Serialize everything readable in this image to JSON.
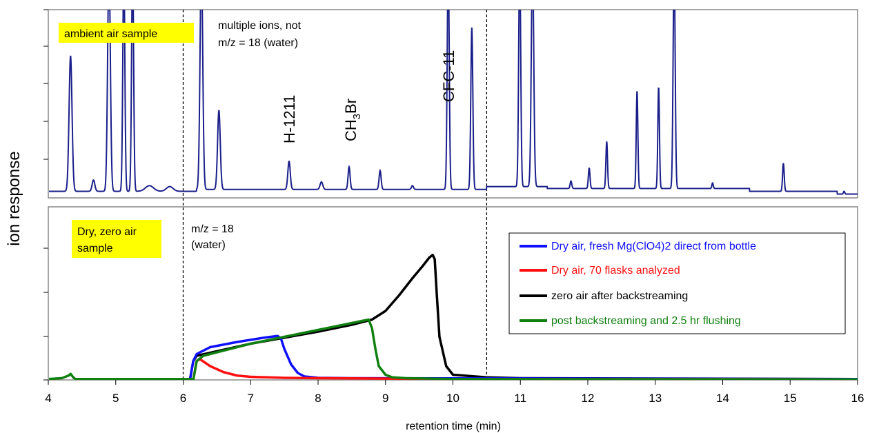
{
  "chart_data": [
    {
      "panel": "top",
      "type": "line",
      "label_box": "ambient air sample",
      "annotation_lines": [
        "multiple ions, not",
        "m/z = 18 (water)"
      ],
      "peak_labels": [
        {
          "text": "H-1211",
          "x": 7.55
        },
        {
          "parts": [
            [
              "CH",
              "normal"
            ],
            [
              "3",
              "sub"
            ],
            [
              "Br",
              "normal"
            ]
          ],
          "x": 8.45
        },
        {
          "text": "CFC-11",
          "x": 9.93
        }
      ],
      "color": "#1a1f8a",
      "baseline": 0.035,
      "peaks": [
        {
          "x": 4.33,
          "h": 0.72,
          "w": 0.022
        },
        {
          "x": 4.67,
          "h": 0.06,
          "w": 0.02
        },
        {
          "x": 4.9,
          "h": 1.2,
          "w": 0.02
        },
        {
          "x": 5.12,
          "h": 1.2,
          "w": 0.015
        },
        {
          "x": 5.25,
          "h": 1.2,
          "w": 0.015
        },
        {
          "x": 5.5,
          "h": 0.03,
          "w": 0.06
        },
        {
          "x": 5.8,
          "h": 0.025,
          "w": 0.05
        },
        {
          "x": 6.27,
          "h": 1.2,
          "w": 0.02
        },
        {
          "x": 6.53,
          "h": 0.42,
          "w": 0.02
        },
        {
          "x": 7.57,
          "h": 0.15,
          "w": 0.018
        },
        {
          "x": 8.05,
          "h": 0.04,
          "w": 0.02
        },
        {
          "x": 8.46,
          "h": 0.12,
          "w": 0.015
        },
        {
          "x": 8.92,
          "h": 0.1,
          "w": 0.015
        },
        {
          "x": 9.4,
          "h": 0.02,
          "w": 0.015
        },
        {
          "x": 9.93,
          "h": 1.2,
          "w": 0.015
        },
        {
          "x": 10.28,
          "h": 0.86,
          "w": 0.015
        },
        {
          "x": 10.99,
          "h": 1.2,
          "w": 0.015
        },
        {
          "x": 11.18,
          "h": 1.2,
          "w": 0.018
        },
        {
          "x": 11.75,
          "h": 0.04,
          "w": 0.012
        },
        {
          "x": 12.02,
          "h": 0.11,
          "w": 0.012
        },
        {
          "x": 12.28,
          "h": 0.25,
          "w": 0.012
        },
        {
          "x": 12.73,
          "h": 0.52,
          "w": 0.012
        },
        {
          "x": 13.05,
          "h": 0.54,
          "w": 0.012
        },
        {
          "x": 13.28,
          "h": 1.2,
          "w": 0.015
        },
        {
          "x": 13.85,
          "h": 0.03,
          "w": 0.01
        },
        {
          "x": 14.9,
          "h": 0.15,
          "w": 0.012
        },
        {
          "x": 15.8,
          "h": 0.015,
          "w": 0.01
        }
      ],
      "steps": [
        [
          6.2,
          0.045
        ],
        [
          10.5,
          0.06
        ],
        [
          11.4,
          0.05
        ],
        [
          14.4,
          0.035
        ],
        [
          15.7,
          0.02
        ]
      ]
    },
    {
      "panel": "bottom",
      "type": "line",
      "label_box": [
        "Dry, zero air",
        "sample"
      ],
      "annotation_lines": [
        "m/z = 18",
        "(water)"
      ],
      "legend": [
        "Dry air, fresh Mg(ClO4)2 direct from bottle",
        "Dry air, 70 flasks analyzed",
        "zero air after backstreaming",
        "post backstreaming and 2.5 hr flushing"
      ],
      "legend_colors": [
        "#1010ff",
        "#ff1010",
        "#000000",
        "#108010"
      ],
      "series": [
        {
          "name": "Dry air, fresh Mg(ClO4)2 direct from bottle",
          "color": "#1010ff",
          "x": [
            6.1,
            6.15,
            6.2,
            6.4,
            6.8,
            7.2,
            7.4,
            7.45,
            7.5,
            7.6,
            7.7,
            7.8,
            8.0,
            8.5,
            16
          ],
          "y": [
            0.0,
            0.11,
            0.15,
            0.19,
            0.22,
            0.245,
            0.255,
            0.24,
            0.18,
            0.09,
            0.04,
            0.02,
            0.012,
            0.01,
            0.005
          ]
        },
        {
          "name": "Dry air, 70 flasks analyzed",
          "color": "#ff1010",
          "x": [
            6.15,
            6.2,
            6.25,
            6.4,
            6.6,
            6.8,
            7.0,
            7.5,
            8.0,
            10,
            16
          ],
          "y": [
            0.0,
            0.11,
            0.12,
            0.08,
            0.045,
            0.025,
            0.018,
            0.012,
            0.01,
            0.005,
            0.003
          ]
        },
        {
          "name": "zero air after backstreaming",
          "color": "#000000",
          "x": [
            6.1,
            6.15,
            6.2,
            7.0,
            7.5,
            8.0,
            8.5,
            8.8,
            9.0,
            9.2,
            9.4,
            9.55,
            9.65,
            9.7,
            9.73,
            9.76,
            9.8,
            9.9,
            10.0,
            10.5,
            11,
            16
          ],
          "y": [
            0.0,
            0.11,
            0.14,
            0.21,
            0.245,
            0.28,
            0.32,
            0.35,
            0.4,
            0.49,
            0.59,
            0.66,
            0.71,
            0.725,
            0.7,
            0.5,
            0.25,
            0.08,
            0.03,
            0.015,
            0.01,
            0.005
          ]
        },
        {
          "name": "post backstreaming and 2.5 hr flushing",
          "color": "#108010",
          "x": [
            6.15,
            6.2,
            6.3,
            7.0,
            7.5,
            8.0,
            8.5,
            8.75,
            8.8,
            8.85,
            8.9,
            9.0,
            9.1,
            9.3,
            10,
            16
          ],
          "y": [
            0.0,
            0.11,
            0.14,
            0.21,
            0.25,
            0.29,
            0.33,
            0.35,
            0.3,
            0.18,
            0.08,
            0.03,
            0.015,
            0.01,
            0.005,
            0.003
          ]
        },
        {
          "name": "baseline",
          "color": "#108010",
          "x": [
            4.0,
            4.2,
            4.3,
            4.33,
            4.37,
            4.4,
            6.15
          ],
          "y": [
            0.005,
            0.01,
            0.025,
            0.035,
            0.015,
            0.005,
            0.005
          ]
        }
      ]
    }
  ],
  "axes": {
    "xlabel": "retention time (min)",
    "ylabel": "ion response",
    "xlim": [
      4,
      16
    ],
    "xticks": [
      "4",
      "5",
      "6",
      "7",
      "8",
      "9",
      "10",
      "11",
      "12",
      "13",
      "14",
      "15",
      "16"
    ],
    "vlines": [
      6.0,
      10.5
    ]
  }
}
